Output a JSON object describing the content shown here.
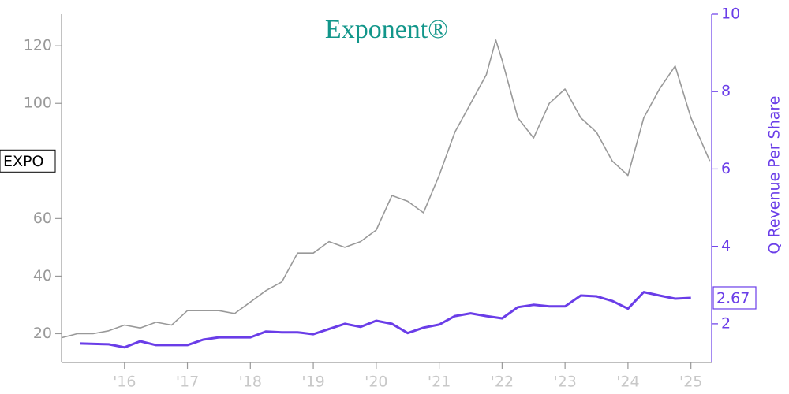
{
  "chart_data": {
    "type": "line",
    "title": "Exponent®",
    "y2label": "Q Revenue Per Share",
    "annotation": "EXPO",
    "xlim": [
      2015.0,
      2025.33
    ],
    "xticks": [
      {
        "value": 2016,
        "label": "'16"
      },
      {
        "value": 2017,
        "label": "'17"
      },
      {
        "value": 2018,
        "label": "'18"
      },
      {
        "value": 2019,
        "label": "'19"
      },
      {
        "value": 2020,
        "label": "'20"
      },
      {
        "value": 2021,
        "label": "'21"
      },
      {
        "value": 2022,
        "label": "'22"
      },
      {
        "value": 2023,
        "label": "'23"
      },
      {
        "value": 2024,
        "label": "'24"
      },
      {
        "value": 2025,
        "label": "'25"
      }
    ],
    "ylim": [
      10,
      131
    ],
    "yticks": [
      20,
      40,
      60,
      100,
      120
    ],
    "y2lim": [
      1,
      10
    ],
    "y2ticks": [
      2,
      4,
      6,
      8,
      10
    ],
    "series": [
      {
        "color": "#999999",
        "x": [
          2015.0,
          2015.25,
          2015.5,
          2015.75,
          2016.0,
          2016.25,
          2016.5,
          2016.75,
          2017.0,
          2017.25,
          2017.5,
          2017.75,
          2018.0,
          2018.25,
          2018.5,
          2018.75,
          2019.0,
          2019.25,
          2019.5,
          2019.75,
          2020.0,
          2020.25,
          2020.5,
          2020.75,
          2021.0,
          2021.25,
          2021.5,
          2021.75,
          2021.9,
          2022.0,
          2022.25,
          2022.5,
          2022.75,
          2023.0,
          2023.25,
          2023.5,
          2023.75,
          2024.0,
          2024.25,
          2024.5,
          2024.75,
          2025.0,
          2025.3
        ],
        "values": [
          18.6,
          20,
          20,
          21,
          23,
          22,
          24,
          23,
          28,
          28,
          28,
          27,
          31,
          35,
          38,
          48,
          48,
          52,
          50,
          52,
          56,
          68,
          66,
          62,
          75,
          90,
          100,
          110,
          122,
          115,
          95,
          88,
          100,
          105,
          95,
          90,
          80,
          75,
          95,
          105,
          113,
          95,
          80
        ]
      },
      {
        "name": "Q Revenue Per Share",
        "color": "#6a3de8",
        "axis": "y2",
        "x": [
          2015.3,
          2015.75,
          2016.0,
          2016.25,
          2016.5,
          2017.0,
          2017.25,
          2017.5,
          2018.0,
          2018.25,
          2018.5,
          2018.75,
          2019.0,
          2019.5,
          2019.75,
          2020.0,
          2020.25,
          2020.5,
          2020.75,
          2021.0,
          2021.25,
          2021.5,
          2021.75,
          2022.0,
          2022.25,
          2022.5,
          2022.75,
          2023.0,
          2023.25,
          2023.5,
          2023.75,
          2024.0,
          2024.25,
          2024.5,
          2024.75,
          2025.0
        ],
        "values": [
          1.49,
          1.47,
          1.39,
          1.55,
          1.45,
          1.45,
          1.59,
          1.65,
          1.65,
          1.8,
          1.78,
          1.78,
          1.73,
          2.0,
          1.92,
          2.08,
          2.0,
          1.76,
          1.9,
          1.98,
          2.2,
          2.27,
          2.2,
          2.14,
          2.43,
          2.49,
          2.45,
          2.45,
          2.73,
          2.71,
          2.59,
          2.39,
          2.82,
          2.73,
          2.65,
          2.67
        ]
      }
    ]
  }
}
